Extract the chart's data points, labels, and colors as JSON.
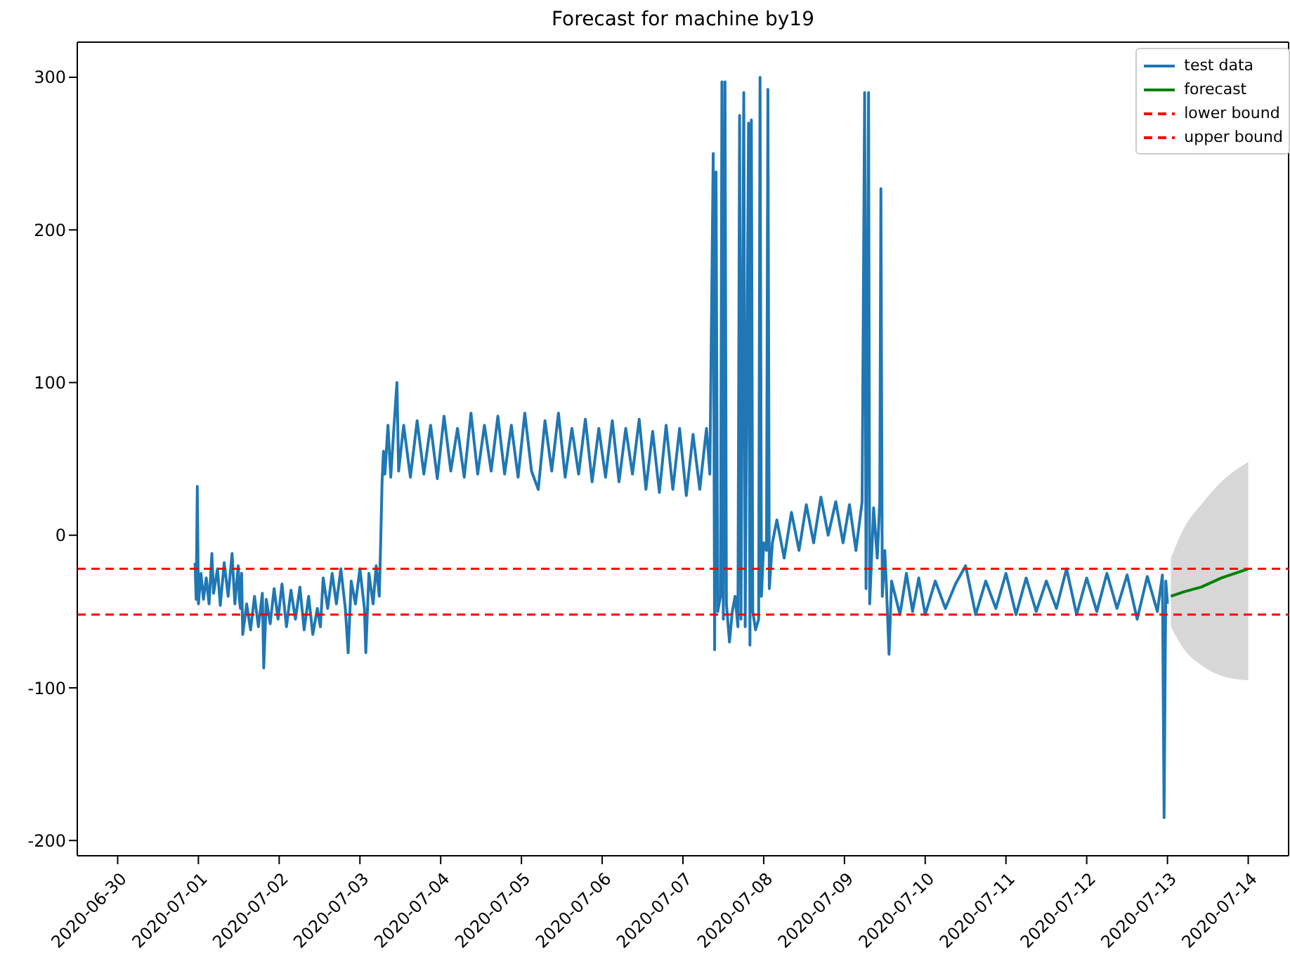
{
  "chart_data": {
    "type": "line",
    "title": "Forecast for machine by19",
    "xlim": [
      "2020-06-29T12:00",
      "2020-07-14T12:00"
    ],
    "xticks": [
      "2020-06-30",
      "2020-07-01",
      "2020-07-02",
      "2020-07-03",
      "2020-07-04",
      "2020-07-05",
      "2020-07-06",
      "2020-07-07",
      "2020-07-08",
      "2020-07-09",
      "2020-07-10",
      "2020-07-11",
      "2020-07-12",
      "2020-07-13",
      "2020-07-14"
    ],
    "ylim": [
      -210,
      323
    ],
    "yticks": [
      -200,
      -100,
      0,
      100,
      200,
      300
    ],
    "legend": "top right",
    "series": [
      {
        "name": "test data",
        "color": "#1f77b4",
        "x": [
          "2020-06-30T23:00",
          "2020-06-30T23:20",
          "2020-06-30T23:40",
          "2020-07-01T00:00",
          "2020-07-01T00:45",
          "2020-07-01T01:30",
          "2020-07-01T02:20",
          "2020-07-01T03:10",
          "2020-07-01T04:00",
          "2020-07-01T04:30",
          "2020-07-01T05:40",
          "2020-07-01T06:30",
          "2020-07-01T07:40",
          "2020-07-01T08:50",
          "2020-07-01T10:00",
          "2020-07-01T10:50",
          "2020-07-01T11:50",
          "2020-07-01T12:10",
          "2020-07-01T12:30",
          "2020-07-01T12:50",
          "2020-07-01T13:10",
          "2020-07-01T14:20",
          "2020-07-01T15:30",
          "2020-07-01T16:40",
          "2020-07-01T17:50",
          "2020-07-01T19:00",
          "2020-07-01T19:25",
          "2020-07-01T20:10",
          "2020-07-01T21:20",
          "2020-07-01T22:30",
          "2020-07-01T23:40",
          "2020-07-02T00:50",
          "2020-07-02T02:10",
          "2020-07-02T03:30",
          "2020-07-02T04:50",
          "2020-07-02T06:10",
          "2020-07-02T07:25",
          "2020-07-02T08:45",
          "2020-07-02T10:00",
          "2020-07-02T11:20",
          "2020-07-02T12:15",
          "2020-07-02T13:05",
          "2020-07-02T14:25",
          "2020-07-02T15:45",
          "2020-07-02T17:00",
          "2020-07-02T18:20",
          "2020-07-02T19:40",
          "2020-07-02T20:30",
          "2020-07-02T21:25",
          "2020-07-02T22:40",
          "2020-07-03T00:00",
          "2020-07-03T01:20",
          "2020-07-03T01:45",
          "2020-07-03T02:40",
          "2020-07-03T03:55",
          "2020-07-03T04:50",
          "2020-07-03T05:45",
          "2020-07-03T06:10",
          "2020-07-03T06:35",
          "2020-07-03T07:00",
          "2020-07-03T07:25",
          "2020-07-03T08:20",
          "2020-07-03T09:10",
          "2020-07-03T10:05",
          "2020-07-03T11:00",
          "2020-07-03T11:30",
          "2020-07-03T13:00",
          "2020-07-03T15:00",
          "2020-07-03T17:00",
          "2020-07-03T19:00",
          "2020-07-03T21:00",
          "2020-07-03T23:00",
          "2020-07-04T01:00",
          "2020-07-04T03:00",
          "2020-07-04T05:00",
          "2020-07-04T07:00",
          "2020-07-04T09:00",
          "2020-07-04T11:00",
          "2020-07-04T13:00",
          "2020-07-04T15:00",
          "2020-07-04T17:00",
          "2020-07-04T19:00",
          "2020-07-04T21:00",
          "2020-07-04T23:00",
          "2020-07-05T01:00",
          "2020-07-05T03:00",
          "2020-07-05T05:00",
          "2020-07-05T07:00",
          "2020-07-05T09:00",
          "2020-07-05T11:00",
          "2020-07-05T13:00",
          "2020-07-05T15:00",
          "2020-07-05T17:00",
          "2020-07-05T19:00",
          "2020-07-05T21:00",
          "2020-07-05T23:00",
          "2020-07-06T01:00",
          "2020-07-06T03:00",
          "2020-07-06T05:00",
          "2020-07-06T07:00",
          "2020-07-06T09:00",
          "2020-07-06T11:00",
          "2020-07-06T13:00",
          "2020-07-06T15:00",
          "2020-07-06T17:00",
          "2020-07-06T19:00",
          "2020-07-06T21:00",
          "2020-07-06T23:00",
          "2020-07-07T01:00",
          "2020-07-07T03:00",
          "2020-07-07T05:00",
          "2020-07-07T07:00",
          "2020-07-07T08:00",
          "2020-07-07T09:00",
          "2020-07-07T09:25",
          "2020-07-07T09:50",
          "2020-07-07T10:20",
          "2020-07-07T11:10",
          "2020-07-07T11:35",
          "2020-07-07T12:00",
          "2020-07-07T12:30",
          "2020-07-07T12:55",
          "2020-07-07T13:50",
          "2020-07-07T14:40",
          "2020-07-07T15:30",
          "2020-07-07T16:20",
          "2020-07-07T16:50",
          "2020-07-07T17:15",
          "2020-07-07T18:05",
          "2020-07-07T18:30",
          "2020-07-07T19:30",
          "2020-07-07T19:55",
          "2020-07-07T20:20",
          "2020-07-07T20:45",
          "2020-07-07T21:35",
          "2020-07-07T22:30",
          "2020-07-07T22:55",
          "2020-07-07T23:20",
          "2020-07-08T00:00",
          "2020-07-08T00:50",
          "2020-07-08T01:15",
          "2020-07-08T01:40",
          "2020-07-08T02:35",
          "2020-07-08T03:55",
          "2020-07-08T06:05",
          "2020-07-08T08:15",
          "2020-07-08T10:30",
          "2020-07-08T12:40",
          "2020-07-08T14:50",
          "2020-07-08T17:00",
          "2020-07-08T19:10",
          "2020-07-08T21:25",
          "2020-07-08T23:35",
          "2020-07-09T01:30",
          "2020-07-09T03:25",
          "2020-07-09T05:15",
          "2020-07-09T06:00",
          "2020-07-09T06:25",
          "2020-07-09T07:10",
          "2020-07-09T07:30",
          "2020-07-09T08:40",
          "2020-07-09T09:45",
          "2020-07-09T10:30",
          "2020-07-09T10:50",
          "2020-07-09T11:15",
          "2020-07-09T12:00",
          "2020-07-09T12:30",
          "2020-07-09T13:15",
          "2020-07-09T14:00",
          "2020-07-09T16:30",
          "2020-07-09T18:25",
          "2020-07-09T20:15",
          "2020-07-09T22:05",
          "2020-07-10T00:00",
          "2020-07-10T03:00",
          "2020-07-10T06:00",
          "2020-07-10T09:00",
          "2020-07-10T12:00",
          "2020-07-10T15:00",
          "2020-07-10T18:00",
          "2020-07-10T21:00",
          "2020-07-11T00:00",
          "2020-07-11T03:00",
          "2020-07-11T06:00",
          "2020-07-11T09:00",
          "2020-07-11T12:00",
          "2020-07-11T15:00",
          "2020-07-11T18:00",
          "2020-07-11T21:00",
          "2020-07-12T00:00",
          "2020-07-12T03:00",
          "2020-07-12T06:00",
          "2020-07-12T09:00",
          "2020-07-12T12:00",
          "2020-07-12T15:00",
          "2020-07-12T18:00",
          "2020-07-12T21:00",
          "2020-07-12T22:30",
          "2020-07-12T23:00",
          "2020-07-12T23:30",
          "2020-07-13T00:00"
        ],
        "values": [
          -18,
          -42,
          32,
          -45,
          -25,
          -42,
          -28,
          -45,
          -12,
          -38,
          -22,
          -46,
          -18,
          -40,
          -12,
          -45,
          -20,
          -42,
          -48,
          -25,
          -65,
          -45,
          -62,
          -40,
          -60,
          -38,
          -87,
          -42,
          -58,
          -35,
          -55,
          -32,
          -60,
          -36,
          -55,
          -34,
          -62,
          -40,
          -65,
          -48,
          -60,
          -28,
          -48,
          -25,
          -45,
          -22,
          -48,
          -77,
          -30,
          -45,
          -22,
          -48,
          -77,
          -25,
          -45,
          -20,
          -40,
          -5,
          35,
          55,
          40,
          72,
          38,
          70,
          100,
          42,
          72,
          38,
          75,
          40,
          72,
          37,
          78,
          42,
          70,
          38,
          80,
          40,
          72,
          42,
          78,
          40,
          72,
          38,
          80,
          42,
          30,
          75,
          42,
          80,
          38,
          70,
          40,
          76,
          35,
          70,
          38,
          75,
          35,
          70,
          40,
          76,
          30,
          68,
          28,
          72,
          30,
          70,
          26,
          66,
          30,
          70,
          40,
          250,
          -75,
          238,
          -50,
          -40,
          297,
          -55,
          297,
          -45,
          -70,
          -50,
          -40,
          -60,
          275,
          -55,
          290,
          -60,
          270,
          -72,
          272,
          -50,
          -62,
          -55,
          300,
          -40,
          -5,
          -10,
          292,
          -35,
          -5,
          10,
          -15,
          15,
          -10,
          20,
          -5,
          25,
          0,
          22,
          -5,
          20,
          -10,
          22,
          290,
          -35,
          290,
          -45,
          18,
          -15,
          22,
          227,
          -40,
          -10,
          -35,
          -78,
          -30,
          -52,
          -25,
          -50,
          -28,
          -52,
          -30,
          -48,
          -32,
          -20,
          -52,
          -30,
          -48,
          -25,
          -52,
          -28,
          -50,
          -30,
          -48,
          -22,
          -52,
          -28,
          -50,
          -25,
          -48,
          -26,
          -55,
          -27,
          -50,
          -26,
          -185,
          -30,
          -45
        ]
      },
      {
        "name": "forecast",
        "color": "#008000",
        "x": [
          "2020-07-13T01:00",
          "2020-07-13T05:00",
          "2020-07-13T10:00",
          "2020-07-13T16:00",
          "2020-07-14T00:00"
        ],
        "values": [
          -40,
          -37,
          -34,
          -28,
          -22
        ],
        "lower": [
          -60,
          -75,
          -85,
          -92,
          -95
        ],
        "upper": [
          -15,
          5,
          20,
          35,
          48
        ]
      }
    ],
    "ref_lines": [
      {
        "axis": "y",
        "value": -52,
        "label": "lower bound",
        "color": "#ff0000",
        "line_style": "dashed"
      },
      {
        "axis": "y",
        "value": -22,
        "label": "upper bound",
        "color": "#ff0000",
        "line_style": "dashed"
      }
    ]
  }
}
